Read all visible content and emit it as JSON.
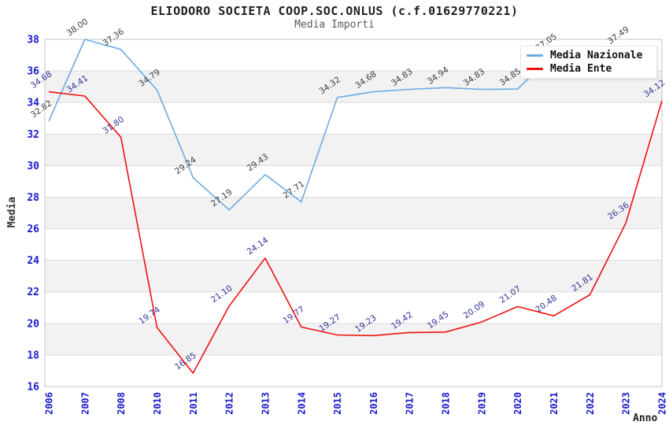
{
  "chart_data": {
    "type": "line",
    "title": "ELIODORO SOCIETA COOP.SOC.ONLUS (c.f.01629770221)",
    "subtitle": "Media Importi",
    "xlabel": "Anno",
    "ylabel": "Media",
    "ylim": [
      16,
      38
    ],
    "yticks": [
      16,
      18,
      20,
      22,
      24,
      26,
      28,
      30,
      32,
      34,
      36,
      38
    ],
    "grid": true,
    "legend_position": "top-right",
    "band_color": "#f2f2f2",
    "grid_color": "#dcdcdc",
    "border_color": "#c4c4c4",
    "axis_tick_color": "#1a1acb",
    "categories": [
      "2006",
      "2007",
      "2008",
      "2010",
      "2011",
      "2012",
      "2013",
      "2014",
      "2015",
      "2016",
      "2017",
      "2018",
      "2019",
      "2020",
      "2021",
      "2022",
      "2023",
      "2024"
    ],
    "series": [
      {
        "name": "Media Nazionale",
        "color": "#6cabe4",
        "label_color": "#3d3d3d",
        "values": [
          32.82,
          38,
          37.36,
          34.79,
          29.24,
          27.19,
          29.43,
          27.71,
          34.32,
          34.68,
          34.83,
          34.94,
          34.83,
          34.85,
          37.05,
          37.4,
          37.49,
          null
        ],
        "labels": [
          "32.82",
          "38.00",
          "37.36",
          "34.79",
          "29.24",
          "27.19",
          "29.43",
          "27.71",
          "34.32",
          "34.68",
          "34.83",
          "34.94",
          "34.83",
          "34.85",
          "37.05",
          "",
          "37.49",
          ""
        ]
      },
      {
        "name": "Media Ente",
        "color": "#f01010",
        "label_color": "#333399",
        "values": [
          34.68,
          34.41,
          31.8,
          19.74,
          16.85,
          21.1,
          24.14,
          19.77,
          19.27,
          19.23,
          19.42,
          19.45,
          20.09,
          21.07,
          20.48,
          21.81,
          26.36,
          34.12
        ],
        "labels": [
          "34.68",
          "34.41",
          "31.80",
          "19.74",
          "16.85",
          "21.10",
          "24.14",
          "19.77",
          "19.27",
          "19.23",
          "19.42",
          "19.45",
          "20.09",
          "21.07",
          "20.48",
          "21.81",
          "26.36",
          "34.12"
        ]
      }
    ]
  }
}
